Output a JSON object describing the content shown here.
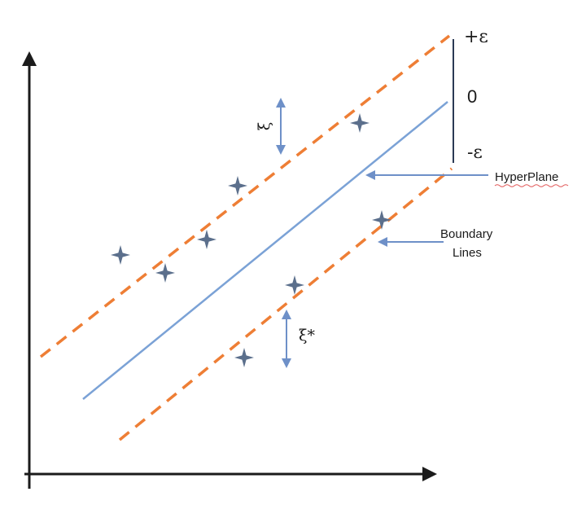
{
  "labels": {
    "plus_epsilon": "+ε",
    "zero": "0",
    "minus_epsilon": "-ε",
    "hyperplane": "HyperPlane",
    "boundary_line1": "Boundary",
    "boundary_line2": "Lines",
    "xi": "ξ",
    "xi_star": "ξ*"
  },
  "colors": {
    "axis": "#1b1b1b",
    "hyperplane": "#7ba2d6",
    "boundary": "#ee7e35",
    "points": "#5b6f8c",
    "arrow": "#6e90c8",
    "scale_bar": "#2b3a55"
  }
}
